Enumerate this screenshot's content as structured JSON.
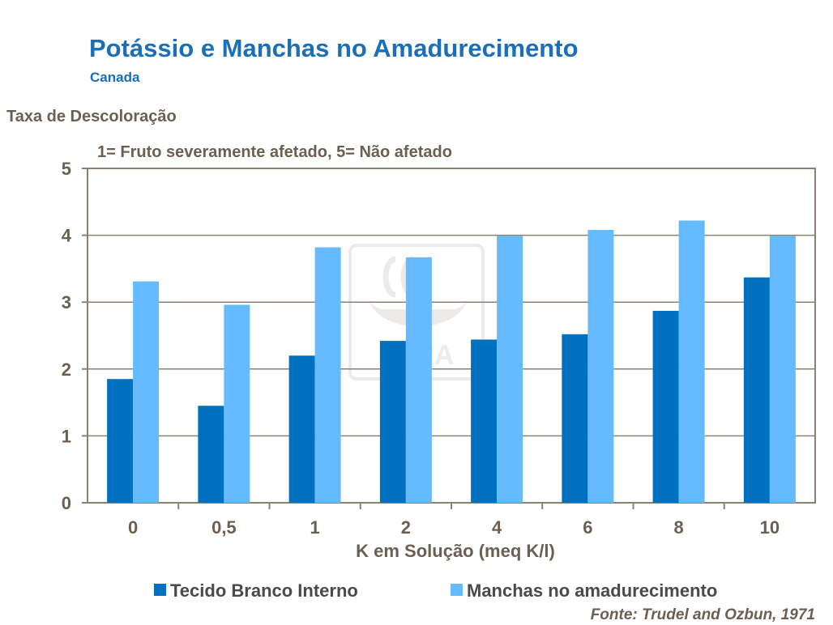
{
  "title": "Potássio e Manchas no Amadurecimento",
  "subtitle": "Canada",
  "source": "Fonte: Trudel and Ozbun, 1971",
  "watermark": "YARA",
  "colors": {
    "series1": "#0070c0",
    "series2": "#66bbff",
    "text": "#6b5f52",
    "title": "#1a6fb8",
    "axis": "#8c8170"
  },
  "chart_data": {
    "type": "bar",
    "title": "Potássio e Manchas no Amadurecimento",
    "ylabel": "Taxa de Descoloração",
    "annotation": "1= Fruto severamente afetado, 5= Não afetado",
    "xlabel": "K em Solução (meq K/l)",
    "categories": [
      "0",
      "0,5",
      "1",
      "2",
      "4",
      "6",
      "8",
      "10"
    ],
    "ylim": [
      0,
      5
    ],
    "yticks": [
      "0",
      "1",
      "2",
      "3",
      "4",
      "5"
    ],
    "legend_position": "bottom",
    "series": [
      {
        "name": "Tecido Branco Interno",
        "values": [
          1.85,
          1.45,
          2.2,
          2.42,
          2.44,
          2.52,
          2.87,
          3.37
        ]
      },
      {
        "name": "Manchas no amadurecimento",
        "values": [
          3.31,
          2.96,
          3.82,
          3.67,
          3.99,
          4.08,
          4.22,
          3.99
        ]
      }
    ]
  }
}
